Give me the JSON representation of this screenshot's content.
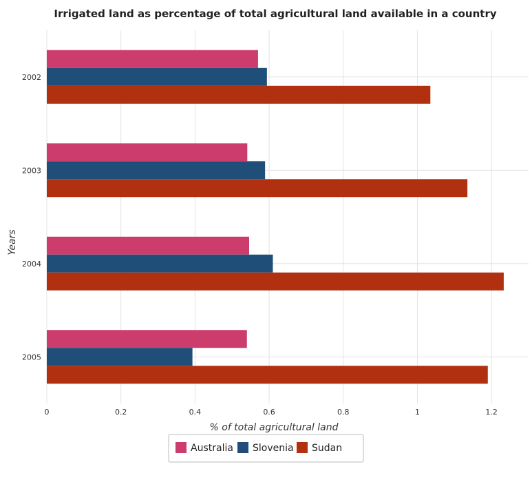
{
  "chart_data": {
    "type": "bar",
    "orientation": "horizontal",
    "title": "Irrigated land as percentage of total agricultural land available in a country",
    "xlabel": "% of total agricultural land",
    "ylabel": "Years",
    "categories": [
      "2002",
      "2003",
      "2004",
      "2005"
    ],
    "series": [
      {
        "name": "Australia",
        "color": "#cc3d6e",
        "values": [
          0.57,
          0.541,
          0.546,
          0.54
        ]
      },
      {
        "name": "Slovenia",
        "color": "#1f4e79",
        "values": [
          0.594,
          0.589,
          0.61,
          0.393
        ]
      },
      {
        "name": "Sudan",
        "color": "#b03010",
        "values": [
          1.035,
          1.135,
          1.233,
          1.19
        ]
      }
    ],
    "xlim": [
      0,
      1.3
    ],
    "xticks": [
      "0",
      "0.2",
      "0.4",
      "0.6",
      "0.8",
      "1",
      "1.2"
    ],
    "grid": true,
    "legend_position": "bottom-center"
  }
}
